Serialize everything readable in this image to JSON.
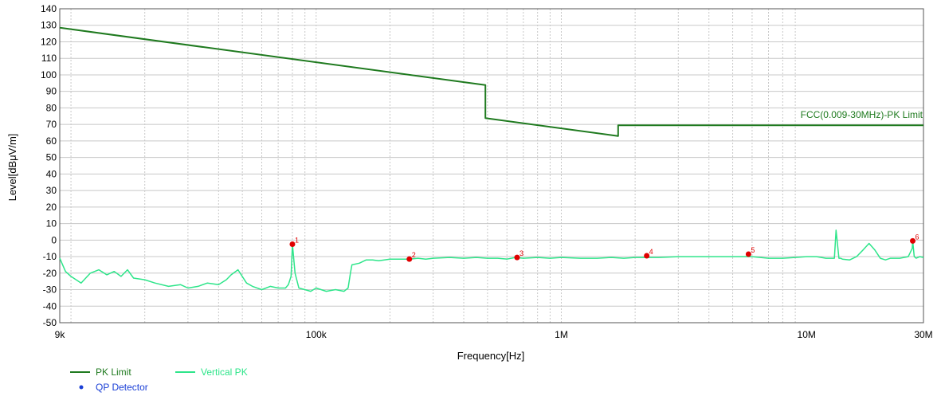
{
  "chart_data": {
    "type": "line",
    "xscale": "log",
    "xlim": [
      9000,
      30000000
    ],
    "ylim": [
      -50,
      140
    ],
    "xlabel": "Frequency[Hz]",
    "ylabel": "Level[dBμV/m]",
    "x_ticks": [
      {
        "value": 9000,
        "label": "9k"
      },
      {
        "value": 100000,
        "label": "100k"
      },
      {
        "value": 1000000,
        "label": "1M"
      },
      {
        "value": 10000000,
        "label": "10M"
      },
      {
        "value": 30000000,
        "label": "30M"
      }
    ],
    "y_ticks": [
      140,
      130,
      120,
      110,
      100,
      90,
      80,
      70,
      60,
      50,
      40,
      30,
      20,
      10,
      0,
      -10,
      -20,
      -30,
      -40,
      -50
    ],
    "limit_annotation": "FCC(0.009-30MHz)-PK Limit",
    "colors": {
      "limit": "#1f7a1f",
      "vertical": "#2ee58a",
      "markers": "#e00000",
      "qp": "#1a3fd6",
      "grid": "#c8c8c8"
    },
    "series": [
      {
        "name": "PK Limit",
        "x": [
          9000,
          490000,
          490000,
          1705000,
          1705000,
          30000000
        ],
        "y": [
          128.5,
          93.8,
          73.8,
          63.0,
          69.5,
          69.5
        ]
      },
      {
        "name": "Vertical PK",
        "x": [
          9000,
          9500,
          10000,
          11000,
          12000,
          13000,
          14000,
          15000,
          16000,
          17000,
          18000,
          20000,
          22000,
          25000,
          28000,
          30000,
          33000,
          36000,
          40000,
          43000,
          45000,
          48000,
          52000,
          55000,
          60000,
          65000,
          70000,
          75000,
          77000,
          79000,
          80000,
          82000,
          85000,
          90000,
          95000,
          100000,
          110000,
          120000,
          130000,
          135000,
          138000,
          140000,
          150000,
          160000,
          170000,
          180000,
          200000,
          220000,
          240000,
          260000,
          280000,
          300000,
          350000,
          400000,
          450000,
          500000,
          550000,
          600000,
          650000,
          700000,
          800000,
          900000,
          1000000,
          1200000,
          1400000,
          1600000,
          1800000,
          2000000,
          2200000,
          2500000,
          3000000,
          3500000,
          4000000,
          4500000,
          5000000,
          5500000,
          6000000,
          7000000,
          8000000,
          9000000,
          10000000,
          11000000,
          12000000,
          13000000,
          13200000,
          13560000,
          13800000,
          14000000,
          15000000,
          16000000,
          17000000,
          18000000,
          19000000,
          20000000,
          21000000,
          22000000,
          24000000,
          26000000,
          27000000,
          27120000,
          27500000,
          28000000,
          29000000,
          30000000
        ],
        "y": [
          -11,
          -19,
          -22,
          -26,
          -20,
          -18,
          -21,
          -19,
          -22,
          -18,
          -23,
          -24,
          -26,
          -28,
          -27,
          -29,
          -28,
          -26,
          -27,
          -24,
          -21,
          -18,
          -26,
          -28,
          -30,
          -28,
          -29,
          -29,
          -27,
          -22,
          -2.5,
          -20,
          -29,
          -30,
          -31,
          -29,
          -31,
          -30,
          -31,
          -29,
          -20,
          -15,
          -14,
          -12,
          -12,
          -12.5,
          -11.5,
          -11.5,
          -11.5,
          -11,
          -11.5,
          -11,
          -10.5,
          -11,
          -10.5,
          -11,
          -11,
          -11.5,
          -10.5,
          -11,
          -10.5,
          -11,
          -10.5,
          -11,
          -11,
          -10.5,
          -11,
          -10.5,
          -10.5,
          -10.5,
          -10,
          -10,
          -10,
          -10,
          -10,
          -10,
          -10,
          -11,
          -11,
          -10.5,
          -10,
          -10,
          -11,
          -11,
          6,
          -11,
          -11,
          -11.5,
          -12,
          -10,
          -6,
          -2,
          -6,
          -11,
          -12,
          -11,
          -11,
          -10,
          -5,
          -0.5,
          -10,
          -11,
          -10,
          -10.5
        ]
      },
      {
        "name": "QP Detector",
        "x": [],
        "y": []
      }
    ],
    "markers": [
      {
        "label": "1",
        "x": 80000,
        "y": -2.5
      },
      {
        "label": "2",
        "x": 240000,
        "y": -11.5
      },
      {
        "label": "3",
        "x": 660000,
        "y": -10.5
      },
      {
        "label": "4",
        "x": 2230000,
        "y": -9.5
      },
      {
        "label": "5",
        "x": 5800000,
        "y": -8.5
      },
      {
        "label": "6",
        "x": 27120000,
        "y": -0.5
      }
    ],
    "legend": {
      "placement": "bottom-left",
      "items": [
        {
          "label": "PK Limit",
          "symbol": "line",
          "color": "#1f7a1f"
        },
        {
          "label": "Vertical PK",
          "symbol": "line",
          "color": "#2ee58a"
        },
        {
          "label": "QP Detector",
          "symbol": "dot",
          "color": "#1a3fd6"
        }
      ]
    },
    "grid": true
  }
}
